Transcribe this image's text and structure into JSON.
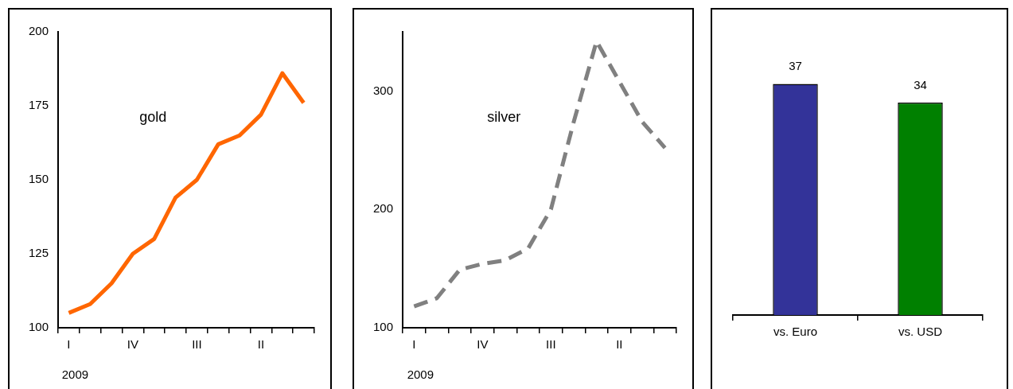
{
  "chart_data": [
    {
      "type": "line",
      "categories": [
        "I",
        null,
        null,
        "IV",
        null,
        null,
        "III",
        null,
        null,
        "II",
        null,
        null
      ],
      "series": [
        {
          "name": "gold",
          "color": "#ff6600",
          "values": [
            105,
            108,
            115,
            125,
            130,
            144,
            150,
            162,
            165,
            172,
            186,
            176
          ]
        }
      ],
      "ylim": [
        100,
        200
      ],
      "yticks": [
        100,
        125,
        150,
        175,
        200
      ],
      "line_style": "solid",
      "annotations": [
        "2009"
      ]
    },
    {
      "type": "line",
      "categories": [
        "I",
        null,
        null,
        "IV",
        null,
        null,
        "III",
        null,
        null,
        "II",
        null,
        null
      ],
      "series": [
        {
          "name": "silver",
          "color": "#808080",
          "values": [
            118,
            125,
            149,
            154,
            157,
            167,
            200,
            274,
            342,
            308,
            274,
            252
          ]
        }
      ],
      "ylim": [
        100,
        350
      ],
      "yticks": [
        100,
        200,
        300
      ],
      "line_style": "dashed",
      "annotations": [
        "2009"
      ]
    },
    {
      "type": "bar",
      "categories": [
        "vs. Euro",
        "vs. USD"
      ],
      "values": [
        37,
        34
      ],
      "colors": [
        "#333399",
        "#008000"
      ],
      "tick_labels": "x",
      "data_labels": true
    }
  ]
}
